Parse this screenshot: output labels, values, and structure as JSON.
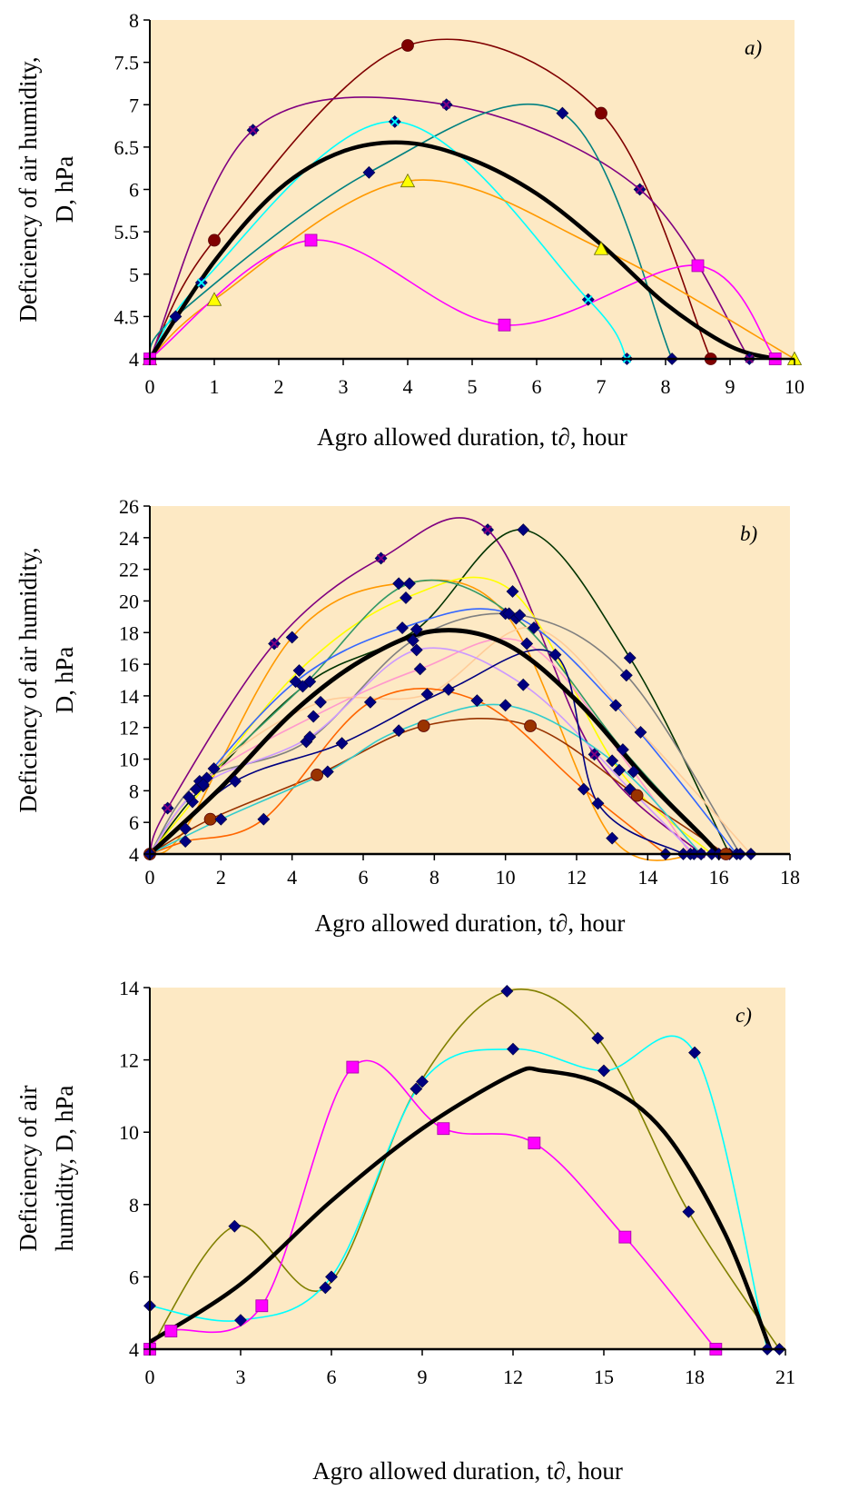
{
  "chart_data": [
    {
      "type": "line",
      "panel_label": "a)",
      "ylabel_lines": [
        "Deficiency of air humidity,",
        "D, hPa"
      ],
      "xlabel": "Agro allowed duration, t∂, hour",
      "xlim": [
        0,
        10
      ],
      "ylim": [
        4,
        8
      ],
      "xticks": [
        "0",
        "1",
        "2",
        "3",
        "4",
        "5",
        "6",
        "7",
        "8",
        "9",
        "10"
      ],
      "yticks": [
        "4",
        "4.5",
        "5",
        "5.5",
        "6",
        "6.5",
        "7",
        "7.5",
        "8"
      ],
      "grid": false,
      "background_color": "#FDE9C4",
      "series": [
        {
          "color": "#800000",
          "marker": "circle",
          "points": [
            [
              0,
              4
            ],
            [
              1,
              5.4
            ],
            [
              4,
              7.7
            ],
            [
              7,
              6.9
            ],
            [
              8.7,
              4
            ]
          ]
        },
        {
          "color": "#800080",
          "marker": "x",
          "points": [
            [
              0,
              4
            ],
            [
              1.6,
              6.7
            ],
            [
              4.6,
              7
            ],
            [
              7.6,
              6
            ],
            [
              9.3,
              4
            ]
          ]
        },
        {
          "color": "#008080",
          "marker": "diamond",
          "points": [
            [
              0,
              4
            ],
            [
              0.4,
              4.5
            ],
            [
              3.4,
              6.2
            ],
            [
              6.4,
              6.9
            ],
            [
              8.1,
              4
            ]
          ]
        },
        {
          "color": "#00FFFF",
          "marker": "x",
          "points": [
            [
              0,
              4
            ],
            [
              0.8,
              4.9
            ],
            [
              3.8,
              6.8
            ],
            [
              6.8,
              4.7
            ],
            [
              7.4,
              4
            ]
          ]
        },
        {
          "color": "#FF9900",
          "marker": "triangle",
          "points": [
            [
              0,
              4
            ],
            [
              1,
              4.7
            ],
            [
              4,
              6.1
            ],
            [
              7,
              5.3
            ],
            [
              10,
              4
            ]
          ]
        },
        {
          "color": "#FF00FF",
          "marker": "square",
          "points": [
            [
              0,
              4
            ],
            [
              2.5,
              5.4
            ],
            [
              5.5,
              4.4
            ],
            [
              8.5,
              5.1
            ],
            [
              9.7,
              4
            ]
          ]
        },
        {
          "color": "#000000",
          "marker": "none",
          "width": 4.5,
          "points": [
            [
              0,
              4
            ],
            [
              1,
              5.15
            ],
            [
              2,
              6
            ],
            [
              3,
              6.45
            ],
            [
              4,
              6.55
            ],
            [
              5,
              6.35
            ],
            [
              6,
              5.95
            ],
            [
              7,
              5.35
            ],
            [
              8,
              4.65
            ],
            [
              9,
              4.15
            ],
            [
              9.7,
              4
            ]
          ]
        }
      ]
    },
    {
      "type": "line",
      "panel_label": "b)",
      "ylabel_lines": [
        "Deficiency of air humidity,",
        "D, hPa"
      ],
      "xlabel": "Agro allowed duration, t∂, hour",
      "xlim": [
        0,
        18
      ],
      "ylim": [
        4,
        26
      ],
      "xticks": [
        "0",
        "2",
        "4",
        "6",
        "8",
        "10",
        "12",
        "14",
        "16",
        "18"
      ],
      "yticks": [
        "4",
        "6",
        "8",
        "10",
        "12",
        "14",
        "16",
        "18",
        "20",
        "22",
        "24",
        "26"
      ],
      "grid": false,
      "background_color": "#FDE9C4",
      "series": [
        {
          "color": "#800080",
          "marker": "x",
          "points": [
            [
              0,
              4
            ],
            [
              0.5,
              6.9
            ],
            [
              3.5,
              17.3
            ],
            [
              6.5,
              22.7
            ],
            [
              9.5,
              24.5
            ],
            [
              12.5,
              10.3
            ],
            [
              15.5,
              4
            ]
          ]
        },
        {
          "color": "#003300",
          "marker": "diamond",
          "points": [
            [
              0,
              4
            ],
            [
              1.5,
              8.3
            ],
            [
              4.5,
              14.9
            ],
            [
              7.5,
              18.2
            ],
            [
              10.5,
              24.5
            ],
            [
              13.5,
              16.4
            ],
            [
              16.3,
              4
            ]
          ]
        },
        {
          "color": "#FF9900",
          "marker": "diamond",
          "points": [
            [
              0,
              4
            ],
            [
              1,
              5.6
            ],
            [
              4,
              17.7
            ],
            [
              7,
              21.1
            ],
            [
              10,
              19.2
            ],
            [
              13,
              5
            ],
            [
              15.5,
              4
            ]
          ]
        },
        {
          "color": "#FFFF00",
          "marker": "diamond",
          "points": [
            [
              0,
              4
            ],
            [
              1.2,
              7.3
            ],
            [
              4.2,
              15.6
            ],
            [
              7.2,
              20.2
            ],
            [
              10.2,
              20.6
            ],
            [
              13.2,
              9.3
            ],
            [
              15.8,
              4
            ]
          ]
        },
        {
          "color": "#339966",
          "marker": "diamond",
          "points": [
            [
              0,
              4
            ],
            [
              1.3,
              8.1
            ],
            [
              4.3,
              14.6
            ],
            [
              7.3,
              21.1
            ],
            [
              10.3,
              18.9
            ],
            [
              13.3,
              10.6
            ],
            [
              16,
              4
            ]
          ]
        },
        {
          "color": "#3366FF",
          "marker": "diamond",
          "points": [
            [
              0,
              4
            ],
            [
              1.1,
              7.6
            ],
            [
              4.1,
              14.9
            ],
            [
              7.1,
              18.3
            ],
            [
              10.1,
              19.2
            ],
            [
              13.1,
              13.4
            ],
            [
              16.5,
              4
            ]
          ]
        },
        {
          "color": "#808080",
          "marker": "diamond",
          "points": [
            [
              0,
              4
            ],
            [
              1.4,
              8.6
            ],
            [
              4.4,
              11.1
            ],
            [
              7.4,
              17.5
            ],
            [
              10.4,
              19.1
            ],
            [
              13.4,
              15.3
            ],
            [
              16.6,
              4
            ]
          ]
        },
        {
          "color": "#FF99CC",
          "marker": "diamond",
          "points": [
            [
              0,
              4
            ],
            [
              1.6,
              8.8
            ],
            [
              4.6,
              12.7
            ],
            [
              7.6,
              15.7
            ],
            [
              10.6,
              17.3
            ],
            [
              13.6,
              9.2
            ],
            [
              15.2,
              4
            ]
          ]
        },
        {
          "color": "#FFCC99",
          "marker": "diamond",
          "points": [
            [
              0,
              4
            ],
            [
              1.8,
              9.4
            ],
            [
              4.8,
              13.6
            ],
            [
              7.8,
              14.1
            ],
            [
              10.8,
              18.3
            ],
            [
              13.8,
              11.7
            ],
            [
              16.9,
              4
            ]
          ]
        },
        {
          "color": "#CC99FF",
          "marker": "diamond",
          "points": [
            [
              0,
              4
            ],
            [
              1.5,
              8.4
            ],
            [
              4.5,
              11.4
            ],
            [
              7.5,
              16.9
            ],
            [
              10.5,
              14.7
            ],
            [
              13.5,
              8.1
            ],
            [
              15.3,
              4
            ]
          ]
        },
        {
          "color": "#993300",
          "marker": "circle",
          "points": [
            [
              0,
              4
            ],
            [
              1.7,
              6.2
            ],
            [
              4.7,
              9
            ],
            [
              7.7,
              12.1
            ],
            [
              10.7,
              12.1
            ],
            [
              13.7,
              7.7
            ],
            [
              16.2,
              4
            ]
          ]
        },
        {
          "color": "#FF6600",
          "marker": "diamond",
          "points": [
            [
              0,
              4
            ],
            [
              1,
              4.8
            ],
            [
              3.2,
              6.2
            ],
            [
              6.2,
              13.6
            ],
            [
              9.2,
              13.7
            ],
            [
              12.2,
              8.1
            ],
            [
              14.5,
              4
            ]
          ]
        },
        {
          "color": "#33CCCC",
          "marker": "diamond",
          "points": [
            [
              0,
              4
            ],
            [
              2,
              6.2
            ],
            [
              5,
              9.2
            ],
            [
              7,
              11.8
            ],
            [
              10,
              13.4
            ],
            [
              13,
              9.9
            ],
            [
              15.5,
              4
            ]
          ]
        },
        {
          "color": "#000080",
          "marker": "diamond",
          "points": [
            [
              0,
              4
            ],
            [
              2.4,
              8.6
            ],
            [
              5.4,
              11
            ],
            [
              8.4,
              14.4
            ],
            [
              11.4,
              16.6
            ],
            [
              12.6,
              7.2
            ],
            [
              15,
              4
            ]
          ]
        },
        {
          "color": "#000000",
          "marker": "none",
          "width": 5,
          "points": [
            [
              0,
              4
            ],
            [
              2,
              8.2
            ],
            [
              4,
              12.9
            ],
            [
              6,
              16.3
            ],
            [
              8,
              18.1
            ],
            [
              10,
              17.3
            ],
            [
              12,
              13.7
            ],
            [
              14,
              8.6
            ],
            [
              15.5,
              5.2
            ],
            [
              16,
              4
            ]
          ]
        }
      ]
    },
    {
      "type": "line",
      "panel_label": "c)",
      "ylabel_lines": [
        "Deficiency of air",
        "humidity, D, hPa"
      ],
      "xlabel": "Agro allowed duration, t∂, hour",
      "xlim": [
        0,
        21
      ],
      "ylim": [
        4,
        14
      ],
      "xticks": [
        "0",
        "3",
        "6",
        "9",
        "12",
        "15",
        "18",
        "21"
      ],
      "yticks": [
        "4",
        "6",
        "8",
        "10",
        "12",
        "14"
      ],
      "grid": false,
      "background_color": "#FDE9C4",
      "series": [
        {
          "color": "#808000",
          "marker": "diamond",
          "points": [
            [
              0,
              4
            ],
            [
              2.8,
              7.4
            ],
            [
              5.8,
              5.7
            ],
            [
              8.8,
              11.2
            ],
            [
              11.8,
              13.9
            ],
            [
              14.8,
              12.6
            ],
            [
              17.8,
              7.8
            ],
            [
              20.8,
              4
            ]
          ]
        },
        {
          "color": "#00FFFF",
          "marker": "diamond",
          "points": [
            [
              0,
              5.2
            ],
            [
              3,
              4.8
            ],
            [
              6,
              6
            ],
            [
              9,
              11.4
            ],
            [
              12,
              12.3
            ],
            [
              15,
              11.7
            ],
            [
              18,
              12.2
            ],
            [
              20.4,
              4
            ]
          ]
        },
        {
          "color": "#FF00FF",
          "marker": "square",
          "points": [
            [
              0,
              4
            ],
            [
              0.7,
              4.5
            ],
            [
              3.7,
              5.2
            ],
            [
              6.7,
              11.8
            ],
            [
              9.7,
              10.1
            ],
            [
              12.7,
              9.7
            ],
            [
              15.7,
              7.1
            ],
            [
              18.7,
              4
            ]
          ]
        },
        {
          "color": "#000000",
          "marker": "none",
          "width": 4.5,
          "points": [
            [
              0,
              4.2
            ],
            [
              3,
              5.8
            ],
            [
              6,
              8.1
            ],
            [
              9,
              10.1
            ],
            [
              12,
              11.6
            ],
            [
              13,
              11.7
            ],
            [
              15,
              11.3
            ],
            [
              17,
              10
            ],
            [
              19,
              7.2
            ],
            [
              20.5,
              4
            ]
          ]
        }
      ]
    }
  ]
}
